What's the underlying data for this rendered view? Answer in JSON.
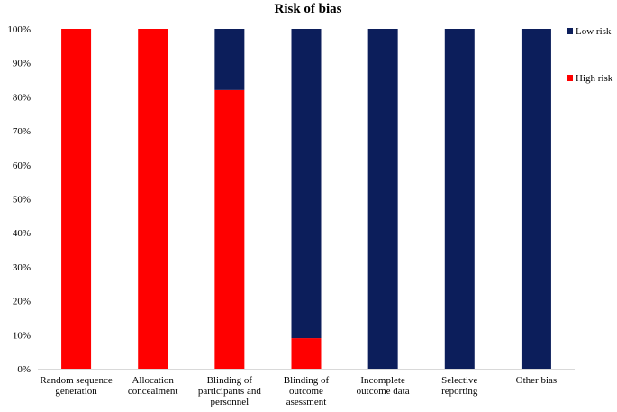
{
  "chart_data": {
    "type": "bar",
    "stacked": true,
    "percent": true,
    "title": "Risk of bias",
    "xlabel": "",
    "ylabel": "",
    "ylim": [
      0,
      100
    ],
    "yticks": [
      "0%",
      "10%",
      "20%",
      "30%",
      "40%",
      "50%",
      "60%",
      "70%",
      "80%",
      "90%",
      "100%"
    ],
    "categories": [
      [
        "Random sequence",
        "generation"
      ],
      [
        "Allocation",
        "concealment"
      ],
      [
        "Blinding of",
        "participants and",
        "personnel"
      ],
      [
        "Blinding of",
        "outcome",
        "asessment"
      ],
      [
        "Incomplete",
        "outcome data"
      ],
      [
        "Selective",
        "reporting"
      ],
      [
        "Other bias"
      ]
    ],
    "series": [
      {
        "name": "High risk",
        "color": "#ff0000",
        "values": [
          100,
          100,
          82,
          9,
          0,
          0,
          0
        ]
      },
      {
        "name": "Low risk",
        "color": "#0c1e5b",
        "values": [
          0,
          0,
          18,
          91,
          100,
          100,
          100
        ]
      }
    ],
    "legend": [
      {
        "name": "Low risk",
        "color": "#0c1e5b"
      },
      {
        "name": "High risk",
        "color": "#ff0000"
      }
    ],
    "legend_position": "right",
    "grid": false
  }
}
